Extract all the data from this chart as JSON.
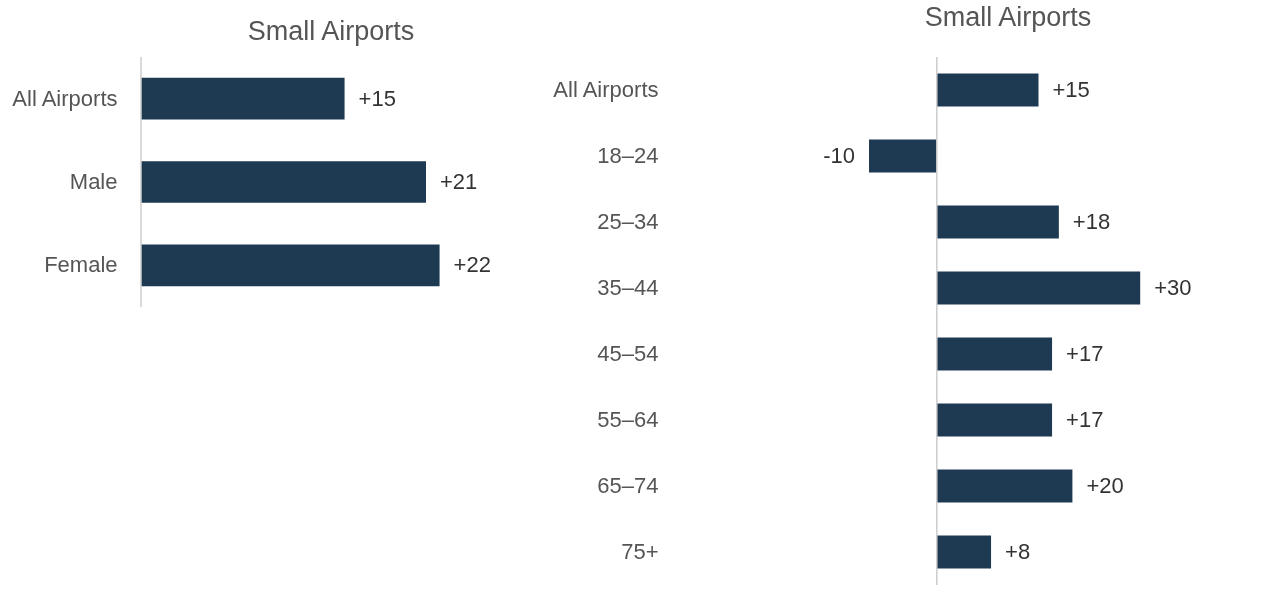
{
  "chart_data": [
    {
      "type": "bar",
      "orientation": "horizontal",
      "title": "Small Airports",
      "categories": [
        "All Airports",
        "Male",
        "Female"
      ],
      "values": [
        15,
        21,
        22
      ],
      "value_labels": [
        "+15",
        "+21",
        "+22"
      ],
      "color": "#1d3a52",
      "tick_labels": "y"
    },
    {
      "type": "bar",
      "orientation": "horizontal",
      "title": "Small Airports",
      "categories": [
        "All Airports",
        "18–24",
        "25–34",
        "35–44",
        "45–54",
        "55–64",
        "65–74",
        "75+"
      ],
      "values": [
        15,
        -10,
        18,
        30,
        17,
        17,
        20,
        8
      ],
      "value_labels": [
        "+15",
        "-10",
        "+18",
        "+30",
        "+17",
        "+17",
        "+20",
        "+8"
      ],
      "color": "#1d3a52",
      "tick_labels": "y"
    }
  ]
}
